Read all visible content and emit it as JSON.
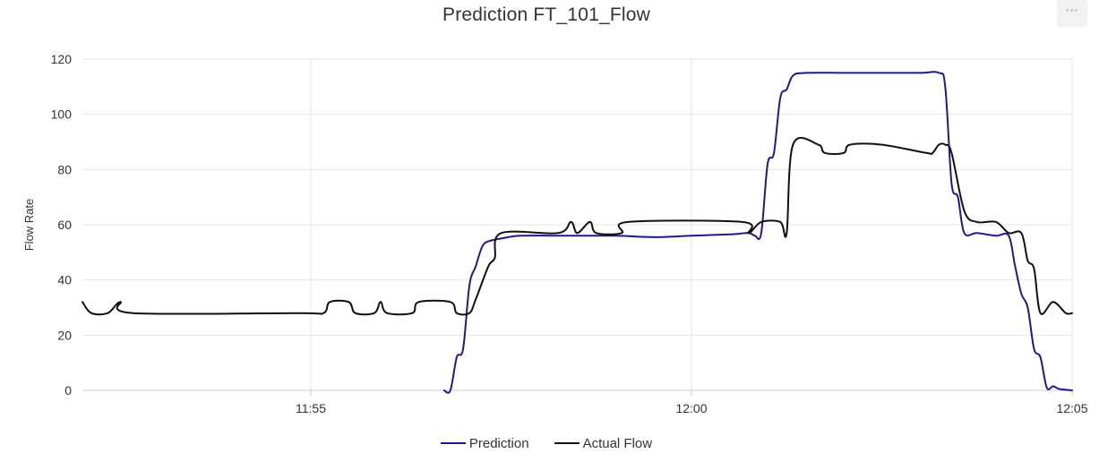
{
  "menu": {
    "icon": "ellipsis-icon"
  },
  "chart_data": {
    "type": "line",
    "title": "Prediction FT_101_Flow",
    "xlabel": "",
    "ylabel": "Flow Rate",
    "x_axis": {
      "range": [
        "11:52:00",
        "12:05:00"
      ],
      "ticks": [
        {
          "t": "11:55:00",
          "label": "11:55"
        },
        {
          "t": "12:00:00",
          "label": "12:00"
        },
        {
          "t": "12:05:00",
          "label": "12:05"
        }
      ]
    },
    "ylim": [
      0,
      120
    ],
    "yticks": [
      0,
      20,
      40,
      60,
      80,
      100,
      120
    ],
    "grid": true,
    "legend_position": "bottom",
    "series": [
      {
        "name": "Prediction",
        "color": "#1f1a8c",
        "points": [
          [
            "11:56:45",
            0
          ],
          [
            "11:56:50",
            0
          ],
          [
            "11:56:55",
            12
          ],
          [
            "11:57:00",
            15
          ],
          [
            "11:57:05",
            38
          ],
          [
            "11:57:10",
            45
          ],
          [
            "11:57:15",
            52
          ],
          [
            "11:57:20",
            54
          ],
          [
            "11:57:30",
            55
          ],
          [
            "11:57:45",
            56
          ],
          [
            "11:58:15",
            56
          ],
          [
            "11:59:00",
            56
          ],
          [
            "11:59:30",
            55.5
          ],
          [
            "12:00:00",
            56
          ],
          [
            "12:00:30",
            56.5
          ],
          [
            "12:00:45",
            57
          ],
          [
            "12:00:50",
            56
          ],
          [
            "12:00:55",
            57
          ],
          [
            "12:01:00",
            82
          ],
          [
            "12:01:05",
            86
          ],
          [
            "12:01:10",
            106
          ],
          [
            "12:01:15",
            109
          ],
          [
            "12:01:20",
            114
          ],
          [
            "12:01:30",
            115
          ],
          [
            "12:02:00",
            115
          ],
          [
            "12:02:30",
            115
          ],
          [
            "12:03:00",
            115
          ],
          [
            "12:03:15",
            115
          ],
          [
            "12:03:20",
            110
          ],
          [
            "12:03:25",
            75
          ],
          [
            "12:03:30",
            70
          ],
          [
            "12:03:35",
            57
          ],
          [
            "12:03:45",
            57
          ],
          [
            "12:04:00",
            56
          ],
          [
            "12:04:10",
            56
          ],
          [
            "12:04:15",
            45
          ],
          [
            "12:04:20",
            35
          ],
          [
            "12:04:25",
            30
          ],
          [
            "12:04:30",
            15
          ],
          [
            "12:04:35",
            12
          ],
          [
            "12:04:40",
            1
          ],
          [
            "12:04:45",
            1.5
          ],
          [
            "12:04:50",
            0.5
          ],
          [
            "12:05:00",
            0
          ]
        ]
      },
      {
        "name": "Actual Flow",
        "color": "#111111",
        "points": [
          [
            "11:52:00",
            32
          ],
          [
            "11:52:07",
            28
          ],
          [
            "11:52:20",
            28
          ],
          [
            "11:52:30",
            32
          ],
          [
            "11:52:40",
            28
          ],
          [
            "11:54:50",
            28
          ],
          [
            "11:55:10",
            28
          ],
          [
            "11:55:15",
            32
          ],
          [
            "11:55:30",
            32
          ],
          [
            "11:55:35",
            28
          ],
          [
            "11:55:50",
            28
          ],
          [
            "11:55:55",
            32
          ],
          [
            "11:56:00",
            28
          ],
          [
            "11:56:20",
            28
          ],
          [
            "11:56:25",
            32
          ],
          [
            "11:56:50",
            32
          ],
          [
            "11:56:55",
            28
          ],
          [
            "11:57:05",
            28
          ],
          [
            "11:57:10",
            33
          ],
          [
            "11:57:20",
            45
          ],
          [
            "11:57:25",
            48
          ],
          [
            "11:57:30",
            57
          ],
          [
            "11:58:15",
            57
          ],
          [
            "11:58:25",
            61
          ],
          [
            "11:58:30",
            57
          ],
          [
            "11:58:40",
            61
          ],
          [
            "11:58:45",
            57
          ],
          [
            "11:59:05",
            57
          ],
          [
            "11:59:10",
            61
          ],
          [
            "12:00:40",
            61
          ],
          [
            "12:00:45",
            57
          ],
          [
            "12:00:55",
            61
          ],
          [
            "12:01:10",
            61
          ],
          [
            "12:01:15",
            57
          ],
          [
            "12:01:20",
            89
          ],
          [
            "12:01:40",
            89
          ],
          [
            "12:01:45",
            86
          ],
          [
            "12:02:00",
            86
          ],
          [
            "12:02:05",
            89
          ],
          [
            "12:02:30",
            89
          ],
          [
            "12:03:05",
            86
          ],
          [
            "12:03:10",
            86
          ],
          [
            "12:03:15",
            89
          ],
          [
            "12:03:20",
            89
          ],
          [
            "12:03:25",
            86
          ],
          [
            "12:03:35",
            65
          ],
          [
            "12:03:45",
            61
          ],
          [
            "12:04:00",
            61
          ],
          [
            "12:04:10",
            57
          ],
          [
            "12:04:20",
            57
          ],
          [
            "12:04:25",
            47
          ],
          [
            "12:04:30",
            44
          ],
          [
            "12:04:35",
            28
          ],
          [
            "12:04:45",
            32
          ],
          [
            "12:04:55",
            28
          ],
          [
            "12:05:00",
            28
          ]
        ]
      }
    ]
  }
}
